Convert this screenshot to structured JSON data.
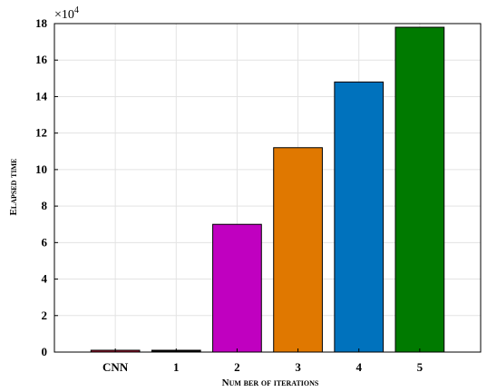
{
  "chart_data": {
    "type": "bar",
    "categories": [
      "CNN",
      "1",
      "2",
      "3",
      "4",
      "5"
    ],
    "values": [
      1000,
      1000,
      70000,
      112000,
      148000,
      178000
    ],
    "colors": [
      "#A2142F",
      "#000000",
      "#C000C0",
      "#E07800",
      "#0072BD",
      "#007A00"
    ],
    "xlabel": "Num ber of iterations",
    "ylabel": "Elapsed time",
    "ylim": [
      0,
      180000
    ],
    "ytick_labels": [
      "0",
      "2",
      "4",
      "6",
      "8",
      "10",
      "12",
      "14",
      "16",
      "18"
    ],
    "exponent_label": "×10",
    "exponent_power": "4",
    "grid": true
  }
}
